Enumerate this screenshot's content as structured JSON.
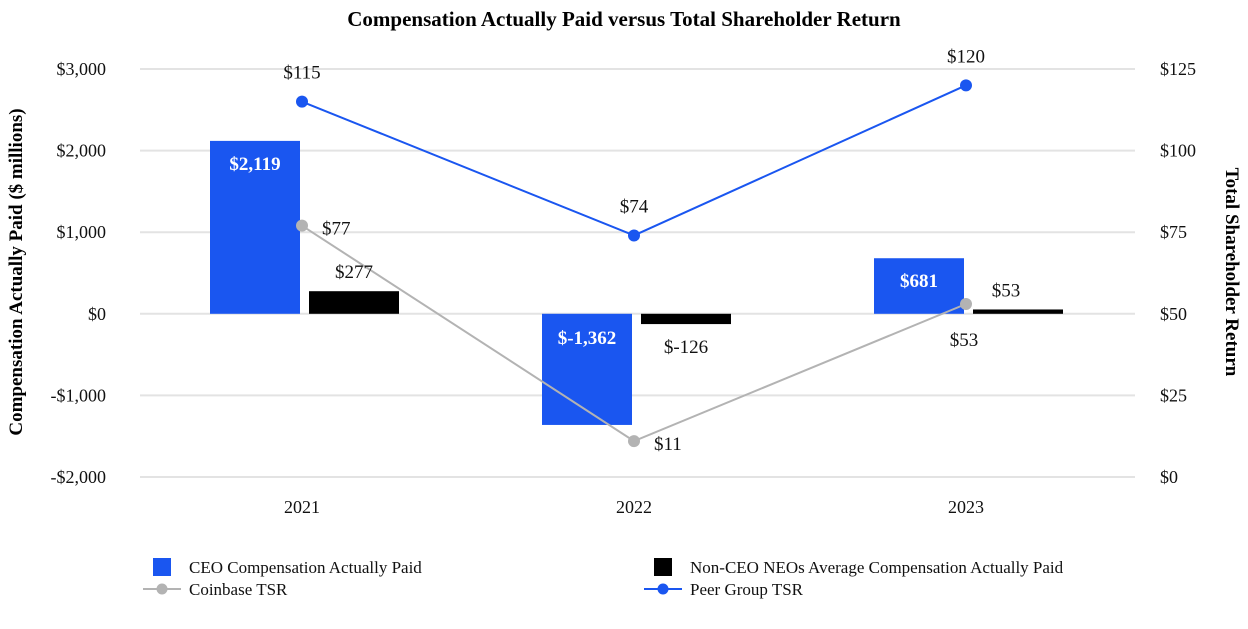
{
  "chart_data": {
    "type": "bar",
    "title": "Compensation Actually Paid versus Total Shareholder Return",
    "categories": [
      "2021",
      "2022",
      "2023"
    ],
    "ylabel": "Compensation Actually Paid ($ millions)",
    "y2label": "Total Shareholder Return",
    "ylim": [
      -2000,
      3000
    ],
    "y2lim": [
      0,
      125
    ],
    "yticks": [
      {
        "value": 3000,
        "label": "$3,000"
      },
      {
        "value": 2000,
        "label": "$2,000"
      },
      {
        "value": 1000,
        "label": "$1,000"
      },
      {
        "value": 0,
        "label": "$0"
      },
      {
        "value": -1000,
        "label": "-$1,000"
      },
      {
        "value": -2000,
        "label": "-$2,000"
      }
    ],
    "y2ticks": [
      {
        "value": 125,
        "label": "$125"
      },
      {
        "value": 100,
        "label": "$100"
      },
      {
        "value": 75,
        "label": "$75"
      },
      {
        "value": 50,
        "label": "$50"
      },
      {
        "value": 25,
        "label": "$25"
      },
      {
        "value": 0,
        "label": "$0"
      }
    ],
    "grid": true,
    "legend_position": "bottom",
    "bar_series": [
      {
        "name": "CEO Compensation Actually Paid",
        "color": "#1a56f0",
        "values": [
          2119,
          -1362,
          681
        ],
        "labels": [
          "$2,119",
          "$-1,362",
          "$681"
        ],
        "label_style": "inside"
      },
      {
        "name": "Non-CEO NEOs Average Compensation Actually Paid",
        "color": "#000000",
        "values": [
          277,
          -126,
          53
        ],
        "labels": [
          "$277",
          "$-126",
          "$53"
        ],
        "label_style": "outside"
      }
    ],
    "line_series": [
      {
        "name": "Coinbase TSR",
        "color": "#b3b3b3",
        "axis": "right",
        "values": [
          77,
          11,
          53
        ],
        "labels": [
          "$77",
          "$11",
          "$53"
        ]
      },
      {
        "name": "Peer Group TSR",
        "color": "#1a56f0",
        "axis": "right",
        "values": [
          115,
          74,
          120
        ],
        "labels": [
          "$115",
          "$74",
          "$120"
        ]
      }
    ]
  }
}
